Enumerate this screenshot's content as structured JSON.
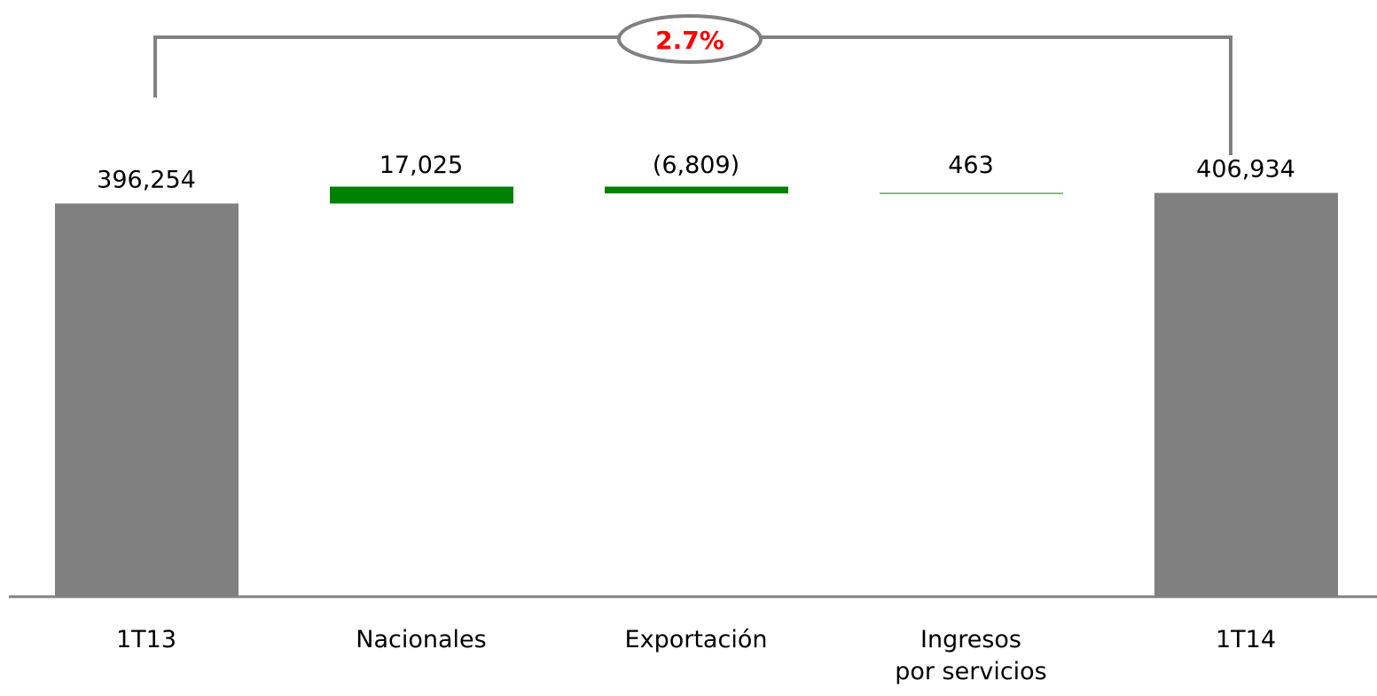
{
  "chart_data": {
    "type": "waterfall",
    "categories": [
      "1T13",
      "Nacionales",
      "Exportación",
      "Ingresos\npor servicios",
      "1T14"
    ],
    "values": [
      396254,
      17025,
      -6809,
      463,
      406934
    ],
    "value_labels": [
      "396,254",
      "17,025",
      "(6,809)",
      "463",
      "406,934"
    ],
    "colors": [
      "#808080",
      "#008000",
      "#008000",
      "#008000",
      "#808080"
    ],
    "ylim": [
      0,
      420000
    ],
    "annotation": "2.7%"
  }
}
